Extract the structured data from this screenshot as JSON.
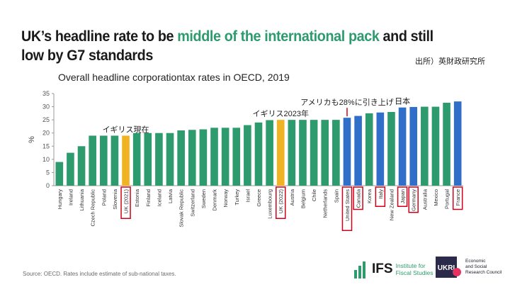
{
  "headline": {
    "part1": "UK’s headline rate to be ",
    "highlight": "middle of the international pack",
    "part2": " and still low by G7 standards"
  },
  "source_jp": "出所）英財政研究所",
  "footnote": "Source: OECD. Rates include estimate of sub-national taxes.",
  "logos": {
    "ifs_name": "IFS",
    "ifs_line1": "Institute for",
    "ifs_line2": "Fiscal Studies",
    "esrc_line1": "Economic",
    "esrc_line2": "and Social",
    "esrc_line3": "Research Council"
  },
  "colors": {
    "green": "#2e9b6e",
    "blue": "#2f6fc9",
    "yellow": "#f0b323",
    "red_box": "#d0021b",
    "axis": "#999999",
    "grid": "#e2e2e2"
  },
  "chart_data": {
    "type": "bar",
    "title": "Overall headline corporationtax rates in OECD, 2019",
    "xlabel": "",
    "ylabel": "%",
    "ylim": [
      0,
      35
    ],
    "yticks": [
      0,
      5,
      10,
      15,
      20,
      25,
      30,
      35
    ],
    "grid": false,
    "categories": [
      "Hungary",
      "Ireland",
      "Lithuania",
      "Czech Republic",
      "Poland",
      "Slovenia",
      "UK (2021)",
      "Estonia",
      "Finland",
      "Iceland",
      "Latvia",
      "Slovak Republic",
      "Switzerland",
      "Sweden",
      "Denmark",
      "Norway",
      "Turkey",
      "Israel",
      "Greece",
      "Luxembourg",
      "UK (2022)",
      "Austria",
      "Belgium",
      "Chile",
      "Netherlands",
      "Spain",
      "United States",
      "Canada",
      "Korea",
      "Italy",
      "New Zealand",
      "Japan",
      "Germany",
      "Australia",
      "Mexico",
      "Portugal",
      "France"
    ],
    "values": [
      9,
      12.5,
      15,
      19,
      19,
      19,
      19,
      20,
      20,
      20,
      20,
      21,
      21.2,
      21.4,
      22,
      22,
      22,
      23,
      24,
      24.9,
      25,
      25,
      25,
      25,
      25,
      25,
      25.8,
      26.5,
      27.5,
      27.8,
      28,
      29.7,
      29.9,
      30,
      30,
      31.5,
      32
    ],
    "colors": [
      "green",
      "green",
      "green",
      "green",
      "green",
      "green",
      "yellow",
      "green",
      "green",
      "green",
      "green",
      "green",
      "green",
      "green",
      "green",
      "green",
      "green",
      "green",
      "green",
      "green",
      "yellow",
      "green",
      "green",
      "green",
      "green",
      "green",
      "blue",
      "blue",
      "green",
      "blue",
      "green",
      "blue",
      "blue",
      "green",
      "green",
      "green",
      "blue"
    ],
    "boxed": [
      "UK (2021)",
      "UK (2022)",
      "United States",
      "Canada",
      "Italy",
      "Japan",
      "Germany",
      "France"
    ],
    "annotations": [
      {
        "text": "イギリス現在",
        "category": "UK (2021)"
      },
      {
        "text": "イギリス2023年",
        "category": "UK (2022)"
      },
      {
        "text": "アメリカも28%に引き上げ",
        "category": "United States",
        "marker_line": true
      },
      {
        "text": "日本",
        "category": "Japan"
      }
    ]
  }
}
